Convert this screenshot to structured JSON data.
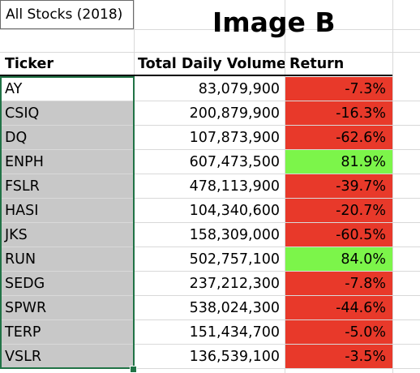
{
  "sheet": {
    "title_cell": "All Stocks (2018)",
    "big_title": "Image B",
    "headers": {
      "ticker": "Ticker",
      "volume": "Total Daily Volume",
      "return": "Return"
    },
    "colors": {
      "negative": "#e8392a",
      "positive": "#7cf54a",
      "selection": "#217346",
      "selected_fill": "#c8c8c8"
    },
    "rows": [
      {
        "ticker": "AY",
        "volume": "83,079,900",
        "return": "-7.3%",
        "status": "negative"
      },
      {
        "ticker": "CSIQ",
        "volume": "200,879,900",
        "return": "-16.3%",
        "status": "negative"
      },
      {
        "ticker": "DQ",
        "volume": "107,873,900",
        "return": "-62.6%",
        "status": "negative"
      },
      {
        "ticker": "ENPH",
        "volume": "607,473,500",
        "return": "81.9%",
        "status": "positive"
      },
      {
        "ticker": "FSLR",
        "volume": "478,113,900",
        "return": "-39.7%",
        "status": "negative"
      },
      {
        "ticker": "HASI",
        "volume": "104,340,600",
        "return": "-20.7%",
        "status": "negative"
      },
      {
        "ticker": "JKS",
        "volume": "158,309,000",
        "return": "-60.5%",
        "status": "negative"
      },
      {
        "ticker": "RUN",
        "volume": "502,757,100",
        "return": "84.0%",
        "status": "positive"
      },
      {
        "ticker": "SEDG",
        "volume": "237,212,300",
        "return": "-7.8%",
        "status": "negative"
      },
      {
        "ticker": "SPWR",
        "volume": "538,024,300",
        "return": "-44.6%",
        "status": "negative"
      },
      {
        "ticker": "TERP",
        "volume": "151,434,700",
        "return": "-5.0%",
        "status": "negative"
      },
      {
        "ticker": "VSLR",
        "volume": "136,539,100",
        "return": "-3.5%",
        "status": "negative"
      }
    ]
  }
}
